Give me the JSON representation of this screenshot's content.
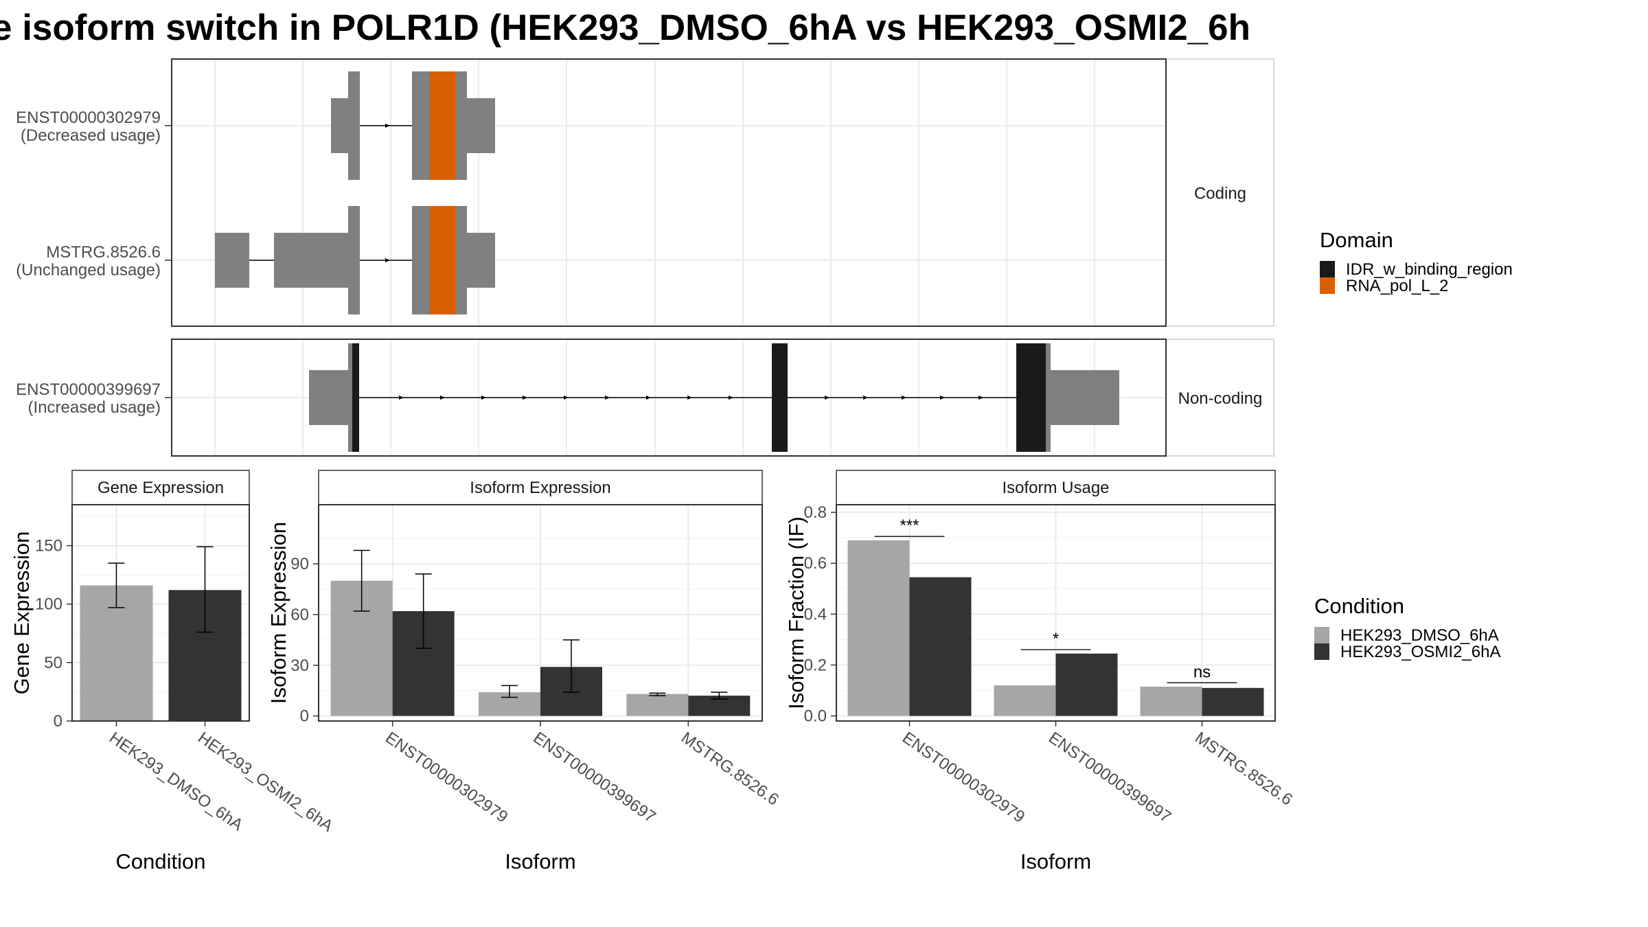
{
  "title": "e isoform switch in POLR1D (HEK293_DMSO_6hA vs HEK293_OSMI2_6h",
  "colors": {
    "exon": "#808080",
    "domain_idr": "#1a1a1a",
    "domain_rna": "#d95f02",
    "dmso": "#a6a6a6",
    "osmi": "#333333"
  },
  "transcript_panel": {
    "facets": [
      {
        "label": "Coding",
        "tracks": [
          {
            "id": "ENST00000302979",
            "usage": "(Decreased usage)"
          },
          {
            "id": "MSTRG.8526.6",
            "usage": "(Unchanged usage)"
          }
        ]
      },
      {
        "label": "Non-coding",
        "tracks": [
          {
            "id": "ENST00000399697",
            "usage": "(Increased usage)"
          }
        ]
      }
    ],
    "legend_title": "Domain",
    "legend_items": [
      {
        "label": "IDR_w_binding_region",
        "color": "#1a1a1a"
      },
      {
        "label": "RNA_pol_L_2",
        "color": "#d95f02"
      }
    ]
  },
  "condition_legend": {
    "title": "Condition",
    "items": [
      {
        "label": "HEK293_DMSO_6hA",
        "color": "#a6a6a6"
      },
      {
        "label": "HEK293_OSMI2_6hA",
        "color": "#333333"
      }
    ]
  },
  "chart_data": [
    {
      "type": "bar",
      "title": "Gene Expression",
      "xlabel": "Condition",
      "ylabel": "Gene Expression",
      "categories": [
        "HEK293_DMSO_6hA",
        "HEK293_OSMI2_6hA"
      ],
      "values": [
        116,
        112
      ],
      "error_low": [
        97,
        76
      ],
      "error_high": [
        135,
        149
      ],
      "ylim": [
        0,
        185
      ],
      "yticks": [
        0,
        50,
        100,
        150
      ],
      "grid": true
    },
    {
      "type": "bar",
      "title": "Isoform Expression",
      "xlabel": "Isoform",
      "ylabel": "Isoform Expression",
      "categories": [
        "ENST00000302979",
        "ENST00000399697",
        "MSTRG.8526.6"
      ],
      "series": [
        {
          "name": "HEK293_DMSO_6hA",
          "values": [
            80,
            14,
            13
          ],
          "error_low": [
            62,
            11,
            12
          ],
          "error_high": [
            98,
            18,
            13.5
          ]
        },
        {
          "name": "HEK293_OSMI2_6hA",
          "values": [
            62,
            29,
            12
          ],
          "error_low": [
            40,
            14,
            10
          ],
          "error_high": [
            84,
            45,
            14
          ]
        }
      ],
      "ylim": [
        -3,
        125
      ],
      "yticks": [
        0,
        30,
        60,
        90
      ],
      "grid": true
    },
    {
      "type": "bar",
      "title": "Isoform Usage",
      "xlabel": "Isoform",
      "ylabel": "Isoform Fraction (IF)",
      "categories": [
        "ENST00000302979",
        "ENST00000399697",
        "MSTRG.8526.6"
      ],
      "series": [
        {
          "name": "HEK293_DMSO_6hA",
          "values": [
            0.69,
            0.12,
            0.115
          ]
        },
        {
          "name": "HEK293_OSMI2_6hA",
          "values": [
            0.545,
            0.245,
            0.11
          ]
        }
      ],
      "significance": [
        "***",
        "*",
        "ns"
      ],
      "ylim": [
        -0.02,
        0.83
      ],
      "yticks": [
        0.0,
        0.2,
        0.4,
        0.6,
        0.8
      ],
      "ytick_labels": [
        "0.0",
        "0.2",
        "0.4",
        "0.6",
        "0.8"
      ],
      "grid": true
    }
  ]
}
